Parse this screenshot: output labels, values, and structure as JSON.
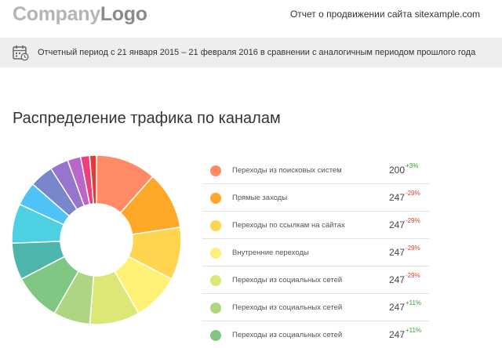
{
  "header": {
    "logo_part1": "Company",
    "logo_part2": "Logo",
    "report_title": "Отчет о продвижении сайта sitexample.com"
  },
  "period_bar": {
    "icon": "calendar-icon",
    "text": "Отчетный период с 21 января 2015 – 21 февраля 2016 в сравнении с аналогичным периодом прошлого года"
  },
  "section": {
    "title": "Распределение трафика по каналам"
  },
  "chart_data": {
    "type": "pie",
    "variant": "donut",
    "slices": [
      {
        "color": "#ff8a65",
        "value": 11.5
      },
      {
        "color": "#ffa726",
        "value": 11.0
      },
      {
        "color": "#ffd54f",
        "value": 10.0
      },
      {
        "color": "#fff176",
        "value": 9.0
      },
      {
        "color": "#dce775",
        "value": 9.5
      },
      {
        "color": "#aed581",
        "value": 7.0
      },
      {
        "color": "#81c784",
        "value": 9.0
      },
      {
        "color": "#4db6ac",
        "value": 7.0
      },
      {
        "color": "#4dd0e1",
        "value": 7.5
      },
      {
        "color": "#4fc3f7",
        "value": 4.5
      },
      {
        "color": "#7986cb",
        "value": 4.5
      },
      {
        "color": "#9575cd",
        "value": 3.5
      },
      {
        "color": "#ba68c8",
        "value": 2.5
      },
      {
        "color": "#ec407a",
        "value": 1.7
      },
      {
        "color": "#e53935",
        "value": 1.3
      }
    ]
  },
  "legend": [
    {
      "label": "Переходы из поисковых систем",
      "value": "200",
      "change": "+3%",
      "color": "#ff8a65",
      "positive": true
    },
    {
      "label": "Прямые заходы",
      "value": "247",
      "change": "-29%",
      "color": "#ffa726",
      "positive": false
    },
    {
      "label": "Переходы по ссылкам на сайтах",
      "value": "247",
      "change": "-29%",
      "color": "#ffd54f",
      "positive": false
    },
    {
      "label": "Внутренние переходы",
      "value": "247",
      "change": "-29%",
      "color": "#fff176",
      "positive": false
    },
    {
      "label": "Переходы из социальных сетей",
      "value": "247",
      "change": "-29%",
      "color": "#dce775",
      "positive": false
    },
    {
      "label": "Переходы из социальных сетей",
      "value": "247",
      "change": "+11%",
      "color": "#aed581",
      "positive": true
    },
    {
      "label": "Переходы из социальных сетей",
      "value": "247",
      "change": "+11%",
      "color": "#81c784",
      "positive": true
    }
  ]
}
